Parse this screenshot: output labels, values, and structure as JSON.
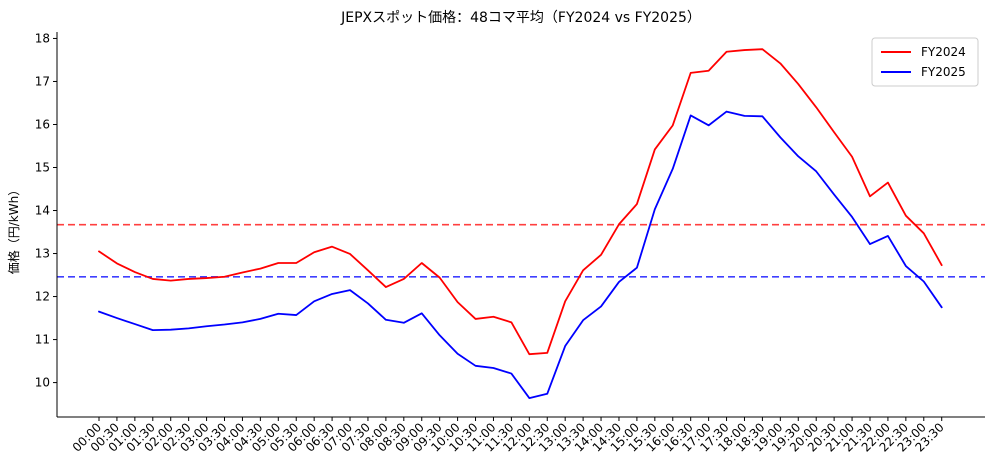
{
  "chart_data": {
    "type": "line",
    "title": "JEPXスポット価格：48コマ平均（FY2024 vs FY2025）",
    "xlabel": "",
    "ylabel": "価格（円/kWh）",
    "ylim": [
      9.2,
      18.15
    ],
    "yticks": [
      10,
      11,
      12,
      13,
      14,
      15,
      16,
      17,
      18
    ],
    "legend_position": "top-right",
    "grid": false,
    "x": [
      "00:00",
      "00:30",
      "01:00",
      "01:30",
      "02:00",
      "02:30",
      "03:00",
      "03:30",
      "04:00",
      "04:30",
      "05:00",
      "05:30",
      "06:00",
      "06:30",
      "07:00",
      "07:30",
      "08:00",
      "08:30",
      "09:00",
      "09:30",
      "10:00",
      "10:30",
      "11:00",
      "11:30",
      "12:00",
      "12:30",
      "13:00",
      "13:30",
      "14:00",
      "14:30",
      "15:00",
      "15:30",
      "16:00",
      "16:30",
      "17:00",
      "17:30",
      "18:00",
      "18:30",
      "19:00",
      "19:30",
      "20:00",
      "20:30",
      "21:00",
      "21:30",
      "22:00",
      "22:30",
      "23:00",
      "23:30"
    ],
    "series": [
      {
        "name": "FY2024",
        "color": "#ff0000",
        "values": [
          13.05,
          12.77,
          12.57,
          12.41,
          12.37,
          12.41,
          12.43,
          12.46,
          12.56,
          12.65,
          12.78,
          12.78,
          13.03,
          13.16,
          12.99,
          12.61,
          12.22,
          12.41,
          12.78,
          12.44,
          11.87,
          11.48,
          11.53,
          11.4,
          10.66,
          10.69,
          11.89,
          12.61,
          12.97,
          13.68,
          14.15,
          15.42,
          15.98,
          17.2,
          17.25,
          17.69,
          17.73,
          17.75,
          17.42,
          16.94,
          16.4,
          15.82,
          15.25,
          14.33,
          14.65,
          13.88,
          13.47,
          12.73
        ]
      },
      {
        "name": "FY2025",
        "color": "#0000ff",
        "values": [
          11.65,
          11.5,
          11.36,
          11.22,
          11.23,
          11.26,
          11.31,
          11.35,
          11.4,
          11.48,
          11.6,
          11.57,
          11.89,
          12.06,
          12.15,
          11.84,
          11.46,
          11.39,
          11.61,
          11.1,
          10.67,
          10.39,
          10.34,
          10.21,
          9.64,
          9.74,
          10.85,
          11.45,
          11.77,
          12.34,
          12.67,
          14.03,
          14.97,
          16.21,
          15.98,
          16.3,
          16.2,
          16.19,
          15.7,
          15.26,
          14.91,
          14.37,
          13.85,
          13.22,
          13.41,
          12.71,
          12.35,
          11.75
        ]
      }
    ],
    "reference_lines": [
      {
        "series": "FY2024",
        "value": 13.67,
        "color": "#ff0000"
      },
      {
        "series": "FY2025",
        "value": 12.46,
        "color": "#0000ff"
      }
    ]
  }
}
